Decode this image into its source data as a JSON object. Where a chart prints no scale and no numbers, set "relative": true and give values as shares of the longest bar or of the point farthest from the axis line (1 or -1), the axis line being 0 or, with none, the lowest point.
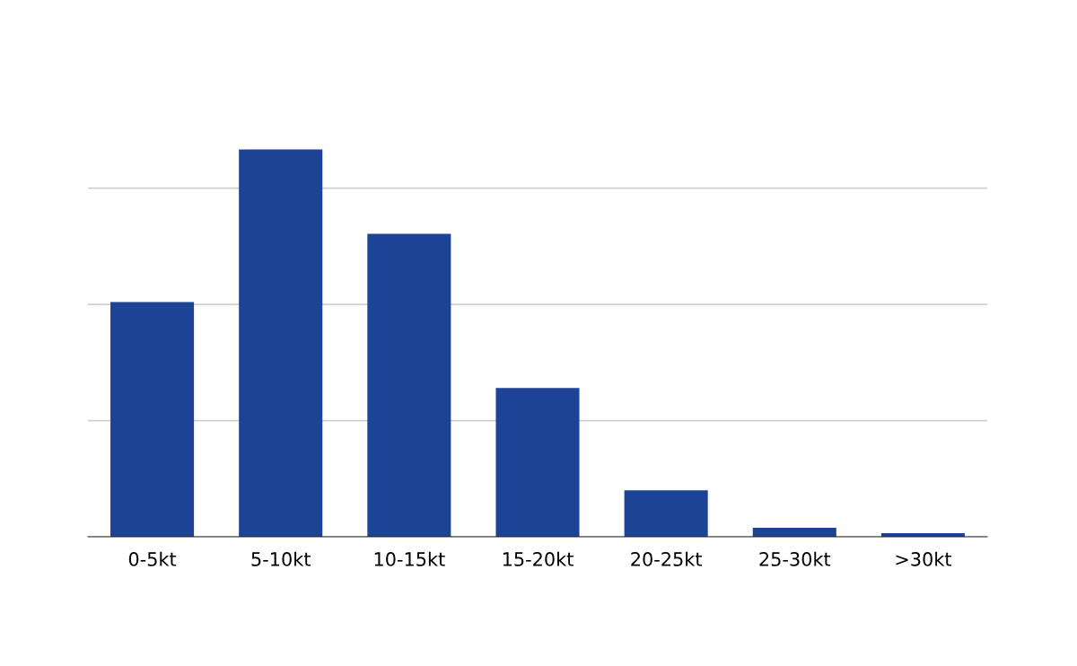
{
  "chart_data": {
    "type": "bar",
    "relative": true,
    "categories": [
      "0-5kt",
      "5-10kt",
      "10-15kt",
      "15-20kt",
      "20-25kt",
      "25-30kt",
      ">30kt"
    ],
    "values": [
      0.606,
      1,
      0.782,
      0.384,
      0.12,
      0.023,
      0.009
    ],
    "color": "#1d4396",
    "grid": "y",
    "legend": false
  }
}
